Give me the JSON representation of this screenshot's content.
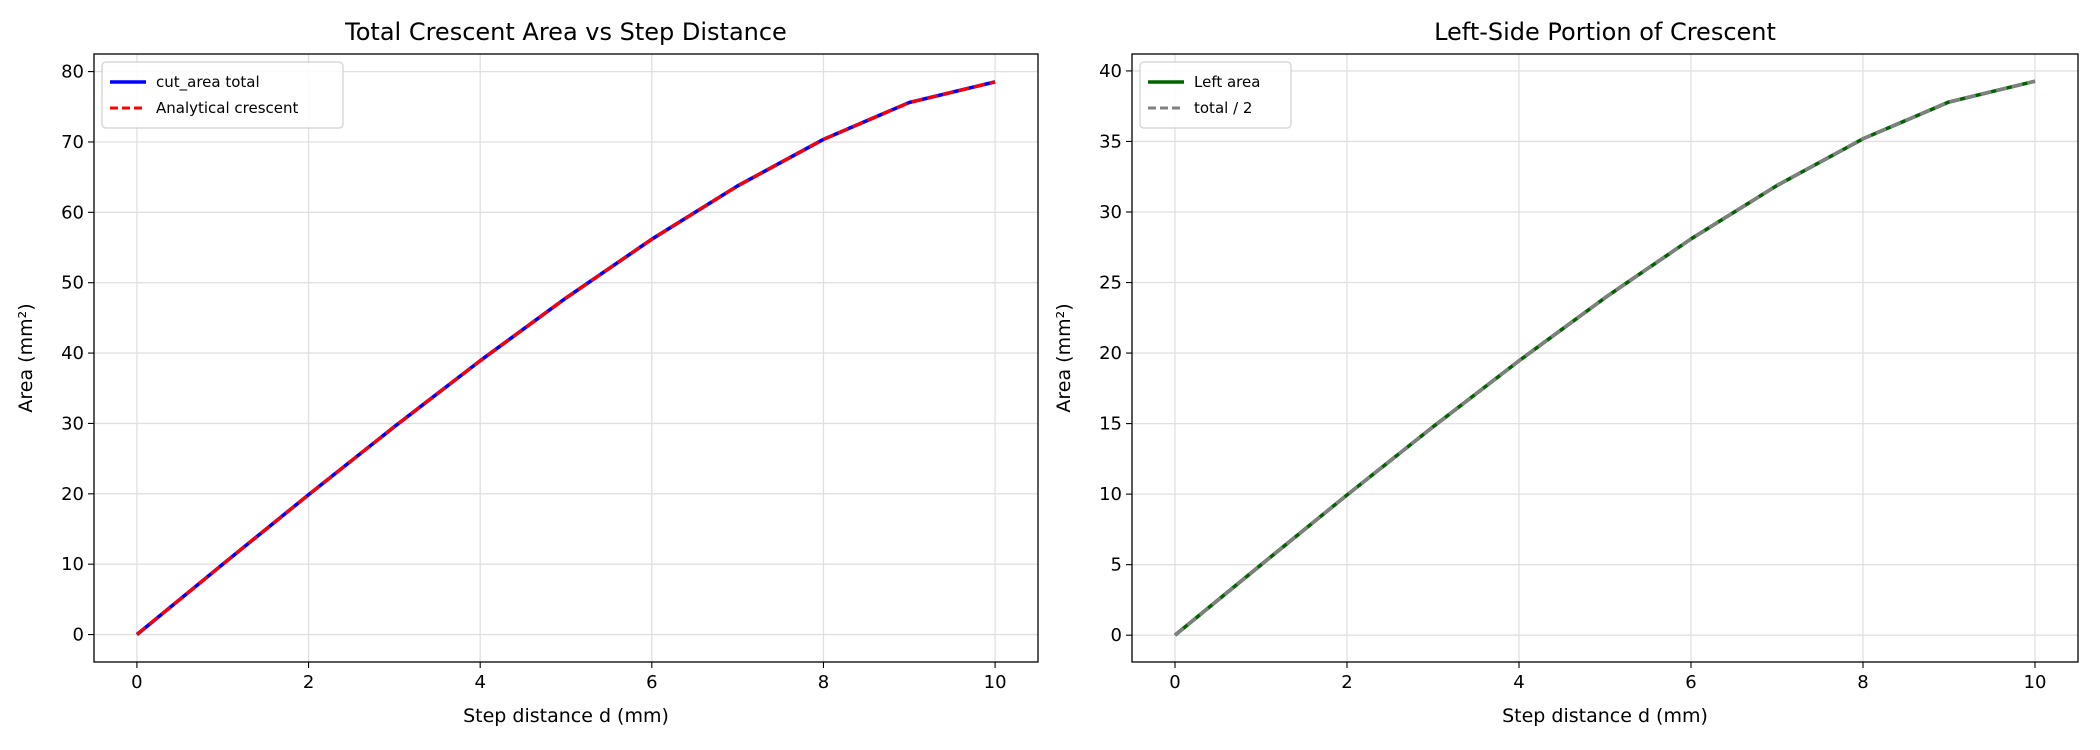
{
  "chart_data": [
    {
      "type": "line",
      "title": "Total Crescent Area vs Step Distance",
      "xlabel": "Step distance d (mm)",
      "ylabel": "Area (mm²)",
      "x": [
        0,
        1,
        2,
        3,
        4,
        5,
        6,
        7,
        8,
        9,
        10
      ],
      "series": [
        {
          "name": "cut_area total",
          "color": "#0000ff",
          "dashed": false,
          "values": [
            0,
            9.99,
            19.87,
            29.54,
            38.91,
            47.83,
            56.18,
            63.76,
            70.37,
            75.61,
            78.54
          ]
        },
        {
          "name": "Analytical crescent",
          "color": "#ff0000",
          "dashed": true,
          "values": [
            0,
            9.99,
            19.87,
            29.54,
            38.91,
            47.83,
            56.18,
            63.76,
            70.37,
            75.61,
            78.54
          ]
        }
      ],
      "xlim": [
        -0.5,
        10.5
      ],
      "ylim": [
        -3.9,
        82.5
      ],
      "xticks": [
        0,
        2,
        4,
        6,
        8,
        10
      ],
      "yticks": [
        0,
        10,
        20,
        30,
        40,
        50,
        60,
        70,
        80
      ],
      "grid": true,
      "legend": "upper left"
    },
    {
      "type": "line",
      "title": "Left-Side Portion of Crescent",
      "xlabel": "Step distance d (mm)",
      "ylabel": "Area (mm²)",
      "x": [
        0,
        1,
        2,
        3,
        4,
        5,
        6,
        7,
        8,
        9,
        10
      ],
      "series": [
        {
          "name": "Left area",
          "color": "#006400",
          "dashed": false,
          "values": [
            0,
            4.99,
            9.94,
            14.77,
            19.45,
            23.92,
            28.09,
            31.88,
            35.19,
            37.8,
            39.27
          ]
        },
        {
          "name": "total / 2",
          "color": "#808080",
          "dashed": true,
          "values": [
            0,
            4.99,
            9.94,
            14.77,
            19.45,
            23.92,
            28.09,
            31.88,
            35.19,
            37.8,
            39.27
          ]
        }
      ],
      "xlim": [
        -0.5,
        10.5
      ],
      "ylim": [
        -1.9,
        41.2
      ],
      "xticks": [
        0,
        2,
        4,
        6,
        8,
        10
      ],
      "yticks": [
        0,
        5,
        10,
        15,
        20,
        25,
        30,
        35,
        40
      ],
      "grid": true,
      "legend": "upper left"
    }
  ]
}
